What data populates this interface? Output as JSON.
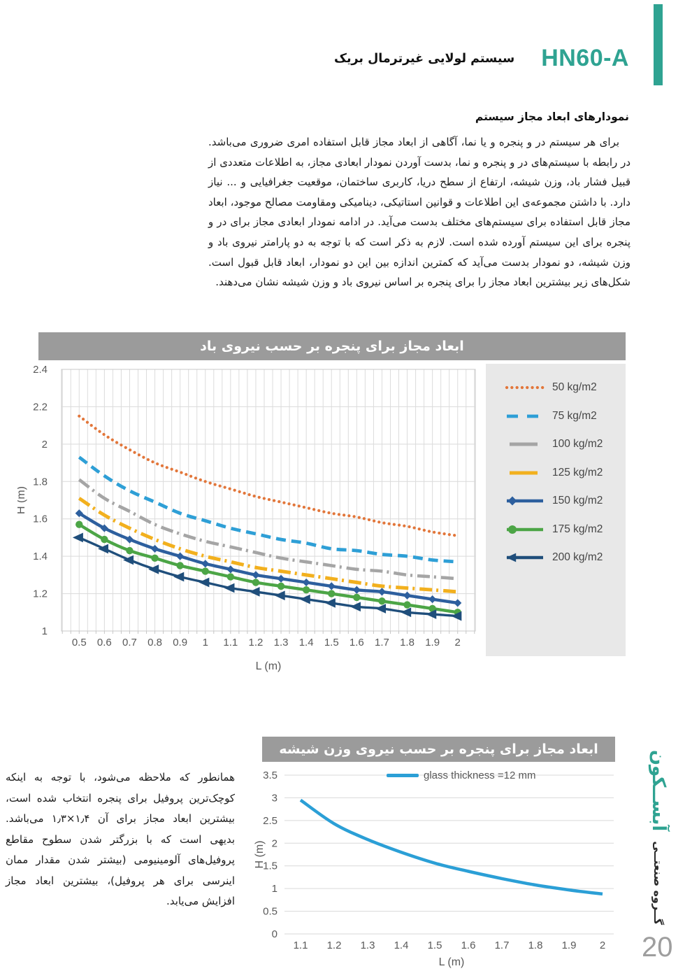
{
  "page": {
    "header": {
      "system_code": "HN60-A",
      "system_name": "سیستم لولایی غیرترمال بریک"
    },
    "section_heading": "نمودارهای ابعاد مجاز سیستم",
    "intro_paragraph": "برای هر سیستم در و پنجره و یا نما، آگاهی از ابعاد مجاز قابل استفاده امری ضروری می‌باشد. در رابطه با سیستم‌های در و پنجره و نما، بدست آوردن نمودار ابعادی مجاز، به اطلاعات متعددی از قبیل فشار باد، وزن شیشه، ارتفاع از سطح دریا، کاربری ساختمان، موقعیت جغرافیایی و ... نیاز دارد. با داشتن مجموعه‌ی این اطلاعات و قوانین استاتیکی، دینامیکی ومقاومت مصالح موجود، ابعاد مجاز قابل استفاده برای سیستم‌های مختلف بدست می‌آید. در ادامه نمودار ابعادی مجاز برای در و پنجره برای این سیستم آورده شده است. لازم به ذکر است که با توجه به دو پارامتر نیروی باد و وزن شیشه، دو نمودار بدست می‌آید که کمترین اندازه بین این دو نمودار، ابعاد قابل قبول است. شکل‌های زیر بیشترین ابعاد مجاز را برای پنجره بر اساس نیروی باد و وزن شیشه نشان می‌دهند.",
    "side_note": "همانطور که ملاحظه می‌شود، با توجه به اینکه کوچک‌ترین پروفیل برای پنجره انتخاب شده است، بیشترین ابعاد مجاز برای آن ۱٫۴×۱٫۳ می‌باشد. بدیهی است که با بزرگتر شدن سطوح مقاطع پروفیل‌های آلومینیومی (بیشتر شدن مقدار ممان اینرسی برای هر پروفیل)، بیشترین ابعاد مجاز افزایش می‌یابد.",
    "brand": {
      "name": "آبســکون",
      "group": "گــروه صنعتــی"
    },
    "page_number": "20",
    "accent_color": "#2fa392",
    "titlebar_color": "#9b9b9b"
  },
  "chart_data": [
    {
      "type": "line",
      "title": "ابعاد مجاز برای پنجره بر حسب نیروی باد",
      "xlabel": "L (m)",
      "ylabel": "H (m)",
      "xlim": [
        0.43,
        2.07
      ],
      "ylim": [
        1,
        2.4
      ],
      "xticks": [
        0.5,
        0.6,
        0.7,
        0.8,
        0.9,
        1,
        1.1,
        1.2,
        1.3,
        1.4,
        1.5,
        1.6,
        1.7,
        1.8,
        1.9,
        2
      ],
      "yticks": [
        1,
        1.2,
        1.4,
        1.6,
        1.8,
        2,
        2.2,
        2.4
      ],
      "grid": "both",
      "legend_position": "right",
      "x": [
        0.5,
        0.6,
        0.7,
        0.8,
        0.9,
        1,
        1.1,
        1.2,
        1.3,
        1.4,
        1.5,
        1.6,
        1.7,
        1.8,
        1.9,
        2
      ],
      "series": [
        {
          "name": "50 kg/m2",
          "color": "#e2763a",
          "style": "dotted",
          "marker": "none",
          "width": 4.2,
          "values": [
            2.15,
            2.05,
            1.97,
            1.9,
            1.85,
            1.8,
            1.76,
            1.72,
            1.69,
            1.66,
            1.63,
            1.61,
            1.58,
            1.56,
            1.53,
            1.51
          ]
        },
        {
          "name": "75 kg/m2",
          "color": "#2e9fd6",
          "style": "dashed",
          "marker": "none",
          "width": 4.8,
          "values": [
            1.93,
            1.83,
            1.75,
            1.69,
            1.63,
            1.59,
            1.55,
            1.52,
            1.49,
            1.47,
            1.44,
            1.43,
            1.41,
            1.4,
            1.38,
            1.37
          ]
        },
        {
          "name": "100 kg/m2",
          "color": "#a5a5a5",
          "style": "dashdot",
          "marker": "none",
          "width": 4.6,
          "values": [
            1.81,
            1.71,
            1.64,
            1.57,
            1.52,
            1.48,
            1.45,
            1.42,
            1.39,
            1.37,
            1.35,
            1.33,
            1.32,
            1.3,
            1.29,
            1.28
          ]
        },
        {
          "name": "125 kg/m2",
          "color": "#f2b01e",
          "style": "dashdot",
          "marker": "none",
          "width": 5,
          "values": [
            1.71,
            1.62,
            1.55,
            1.49,
            1.44,
            1.4,
            1.37,
            1.34,
            1.32,
            1.3,
            1.28,
            1.26,
            1.24,
            1.23,
            1.22,
            1.21
          ]
        },
        {
          "name": "150 kg/m2",
          "color": "#2d5f9e",
          "style": "solid",
          "marker": "diamond",
          "width": 4.4,
          "values": [
            1.63,
            1.55,
            1.49,
            1.44,
            1.4,
            1.36,
            1.33,
            1.3,
            1.28,
            1.26,
            1.24,
            1.22,
            1.21,
            1.19,
            1.17,
            1.15
          ]
        },
        {
          "name": "175 kg/m2",
          "color": "#4ca546",
          "style": "solid",
          "marker": "circle",
          "width": 4.4,
          "values": [
            1.57,
            1.49,
            1.43,
            1.39,
            1.35,
            1.32,
            1.29,
            1.26,
            1.24,
            1.22,
            1.2,
            1.18,
            1.16,
            1.14,
            1.12,
            1.1
          ]
        },
        {
          "name": "200 kg/m2",
          "color": "#1f4e7b",
          "style": "solid",
          "marker": "arrow-left",
          "width": 3.4,
          "values": [
            1.5,
            1.44,
            1.38,
            1.33,
            1.29,
            1.26,
            1.23,
            1.21,
            1.19,
            1.17,
            1.15,
            1.13,
            1.12,
            1.1,
            1.09,
            1.08
          ]
        }
      ]
    },
    {
      "type": "line",
      "title": "ابعاد مجاز برای پنجره بر حسب نیروی وزن شیشه",
      "xlabel": "L (m)",
      "ylabel": "H (m)",
      "xlim": [
        1.05,
        2.05
      ],
      "ylim": [
        0,
        3.5
      ],
      "xticks": [
        1.1,
        1.2,
        1.3,
        1.4,
        1.5,
        1.6,
        1.7,
        1.8,
        1.9,
        2
      ],
      "yticks": [
        0,
        0.5,
        1,
        1.5,
        2,
        2.5,
        3,
        3.5
      ],
      "grid": "horizontal",
      "legend_position": "top-center",
      "x": [
        1.1,
        1.2,
        1.3,
        1.4,
        1.5,
        1.6,
        1.7,
        1.8,
        1.9,
        2
      ],
      "series": [
        {
          "name": "glass thickness =12 mm",
          "color": "#2b9fd6",
          "style": "solid",
          "marker": "none",
          "width": 4.5,
          "values": [
            2.95,
            2.43,
            2.08,
            1.8,
            1.56,
            1.38,
            1.22,
            1.08,
            0.97,
            0.88
          ]
        }
      ]
    }
  ]
}
